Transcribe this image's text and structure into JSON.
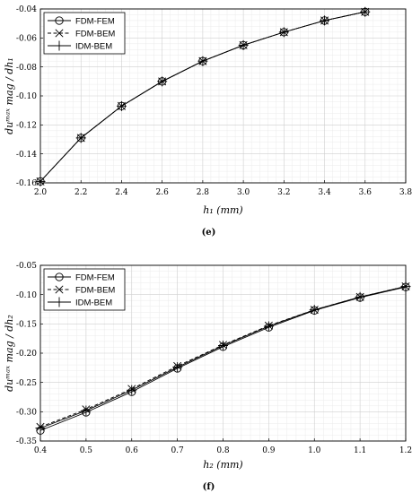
{
  "chart_data": [
    {
      "type": "line",
      "panel_label": "(e)",
      "xlabel": "h₁ (mm)",
      "ylabel": "duᵐᵃˣ mag / dh₁",
      "xlim": [
        2.0,
        3.8
      ],
      "ylim": [
        -0.16,
        -0.04
      ],
      "xticks": [
        "2.0",
        "2.2",
        "2.4",
        "2.6",
        "2.8",
        "3.0",
        "3.2",
        "3.4",
        "3.6",
        "3.8"
      ],
      "yticks": [
        "-0.16",
        "-0.14",
        "-0.12",
        "-0.10",
        "-0.08",
        "-0.06",
        "-0.04"
      ],
      "grid": true,
      "legend_position": "top-left",
      "x": [
        2.0,
        2.2,
        2.4,
        2.6,
        2.8,
        3.0,
        3.2,
        3.4,
        3.6
      ],
      "series": [
        {
          "name": "FDM-FEM",
          "marker": "circle",
          "line": "solid",
          "values": [
            -0.159,
            -0.129,
            -0.107,
            -0.09,
            -0.076,
            -0.065,
            -0.056,
            -0.048,
            -0.042
          ]
        },
        {
          "name": "FDM-BEM",
          "marker": "x",
          "line": "dashed",
          "values": [
            -0.159,
            -0.129,
            -0.107,
            -0.09,
            -0.076,
            -0.065,
            -0.056,
            -0.048,
            -0.042
          ]
        },
        {
          "name": "IDM-BEM",
          "marker": "plus",
          "line": "solid",
          "values": [
            -0.159,
            -0.129,
            -0.107,
            -0.09,
            -0.076,
            -0.065,
            -0.056,
            -0.048,
            -0.042
          ]
        }
      ]
    },
    {
      "type": "line",
      "panel_label": "(f)",
      "xlabel": "h₂ (mm)",
      "ylabel": "duᵐᵃˣ mag / dh₂",
      "xlim": [
        0.4,
        1.2
      ],
      "ylim": [
        -0.35,
        -0.05
      ],
      "xticks": [
        "0.4",
        "0.5",
        "0.6",
        "0.7",
        "0.8",
        "0.9",
        "1.0",
        "1.1",
        "1.2"
      ],
      "yticks": [
        "-0.35",
        "-0.30",
        "-0.25",
        "-0.20",
        "-0.15",
        "-0.10",
        "-0.05"
      ],
      "grid": true,
      "legend_position": "top-left",
      "x": [
        0.4,
        0.5,
        0.6,
        0.7,
        0.8,
        0.9,
        1.0,
        1.1,
        1.2
      ],
      "series": [
        {
          "name": "FDM-FEM",
          "marker": "circle",
          "line": "solid",
          "values": [
            -0.332,
            -0.301,
            -0.266,
            -0.226,
            -0.189,
            -0.156,
            -0.127,
            -0.105,
            -0.087
          ]
        },
        {
          "name": "FDM-BEM",
          "marker": "x",
          "line": "dashed",
          "values": [
            -0.326,
            -0.296,
            -0.261,
            -0.222,
            -0.186,
            -0.153,
            -0.126,
            -0.104,
            -0.086
          ]
        },
        {
          "name": "IDM-BEM",
          "marker": "plus",
          "line": "solid",
          "values": [
            -0.328,
            -0.298,
            -0.263,
            -0.224,
            -0.187,
            -0.154,
            -0.126,
            -0.104,
            -0.086
          ]
        }
      ]
    }
  ]
}
